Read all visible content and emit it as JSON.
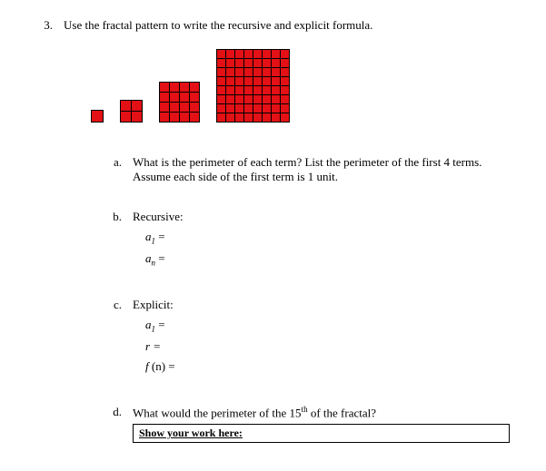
{
  "question": {
    "number": "3.",
    "prompt": "Use the fractal pattern to write the recursive and explicit formula."
  },
  "fractal": {
    "cell_color": "#e31015",
    "grid_line_color": "#000000",
    "terms": [
      1,
      2,
      4,
      8
    ]
  },
  "parts": {
    "a": {
      "letter": "a.",
      "text_line1": "What is the perimeter of each term? List the perimeter of the first 4 terms.",
      "text_line2": "Assume each side of the first term is 1 unit."
    },
    "b": {
      "letter": "b.",
      "label": "Recursive:",
      "line1_var": "a",
      "line1_sub": "1",
      "line1_eq": " =",
      "line2_var": "a",
      "line2_sub": "n",
      "line2_eq": " ="
    },
    "c": {
      "letter": "c.",
      "label": "Explicit:",
      "line1_var": "a",
      "line1_sub": "1",
      "line1_eq": " =",
      "line2": "r =",
      "line3_fn": "f ",
      "line3_arg": "(n) ="
    },
    "d": {
      "letter": "d.",
      "text_prefix": "What would the perimeter of the 15",
      "text_sup": "th",
      "text_suffix": " of the fractal?",
      "work_box": "Show your work here:"
    }
  }
}
